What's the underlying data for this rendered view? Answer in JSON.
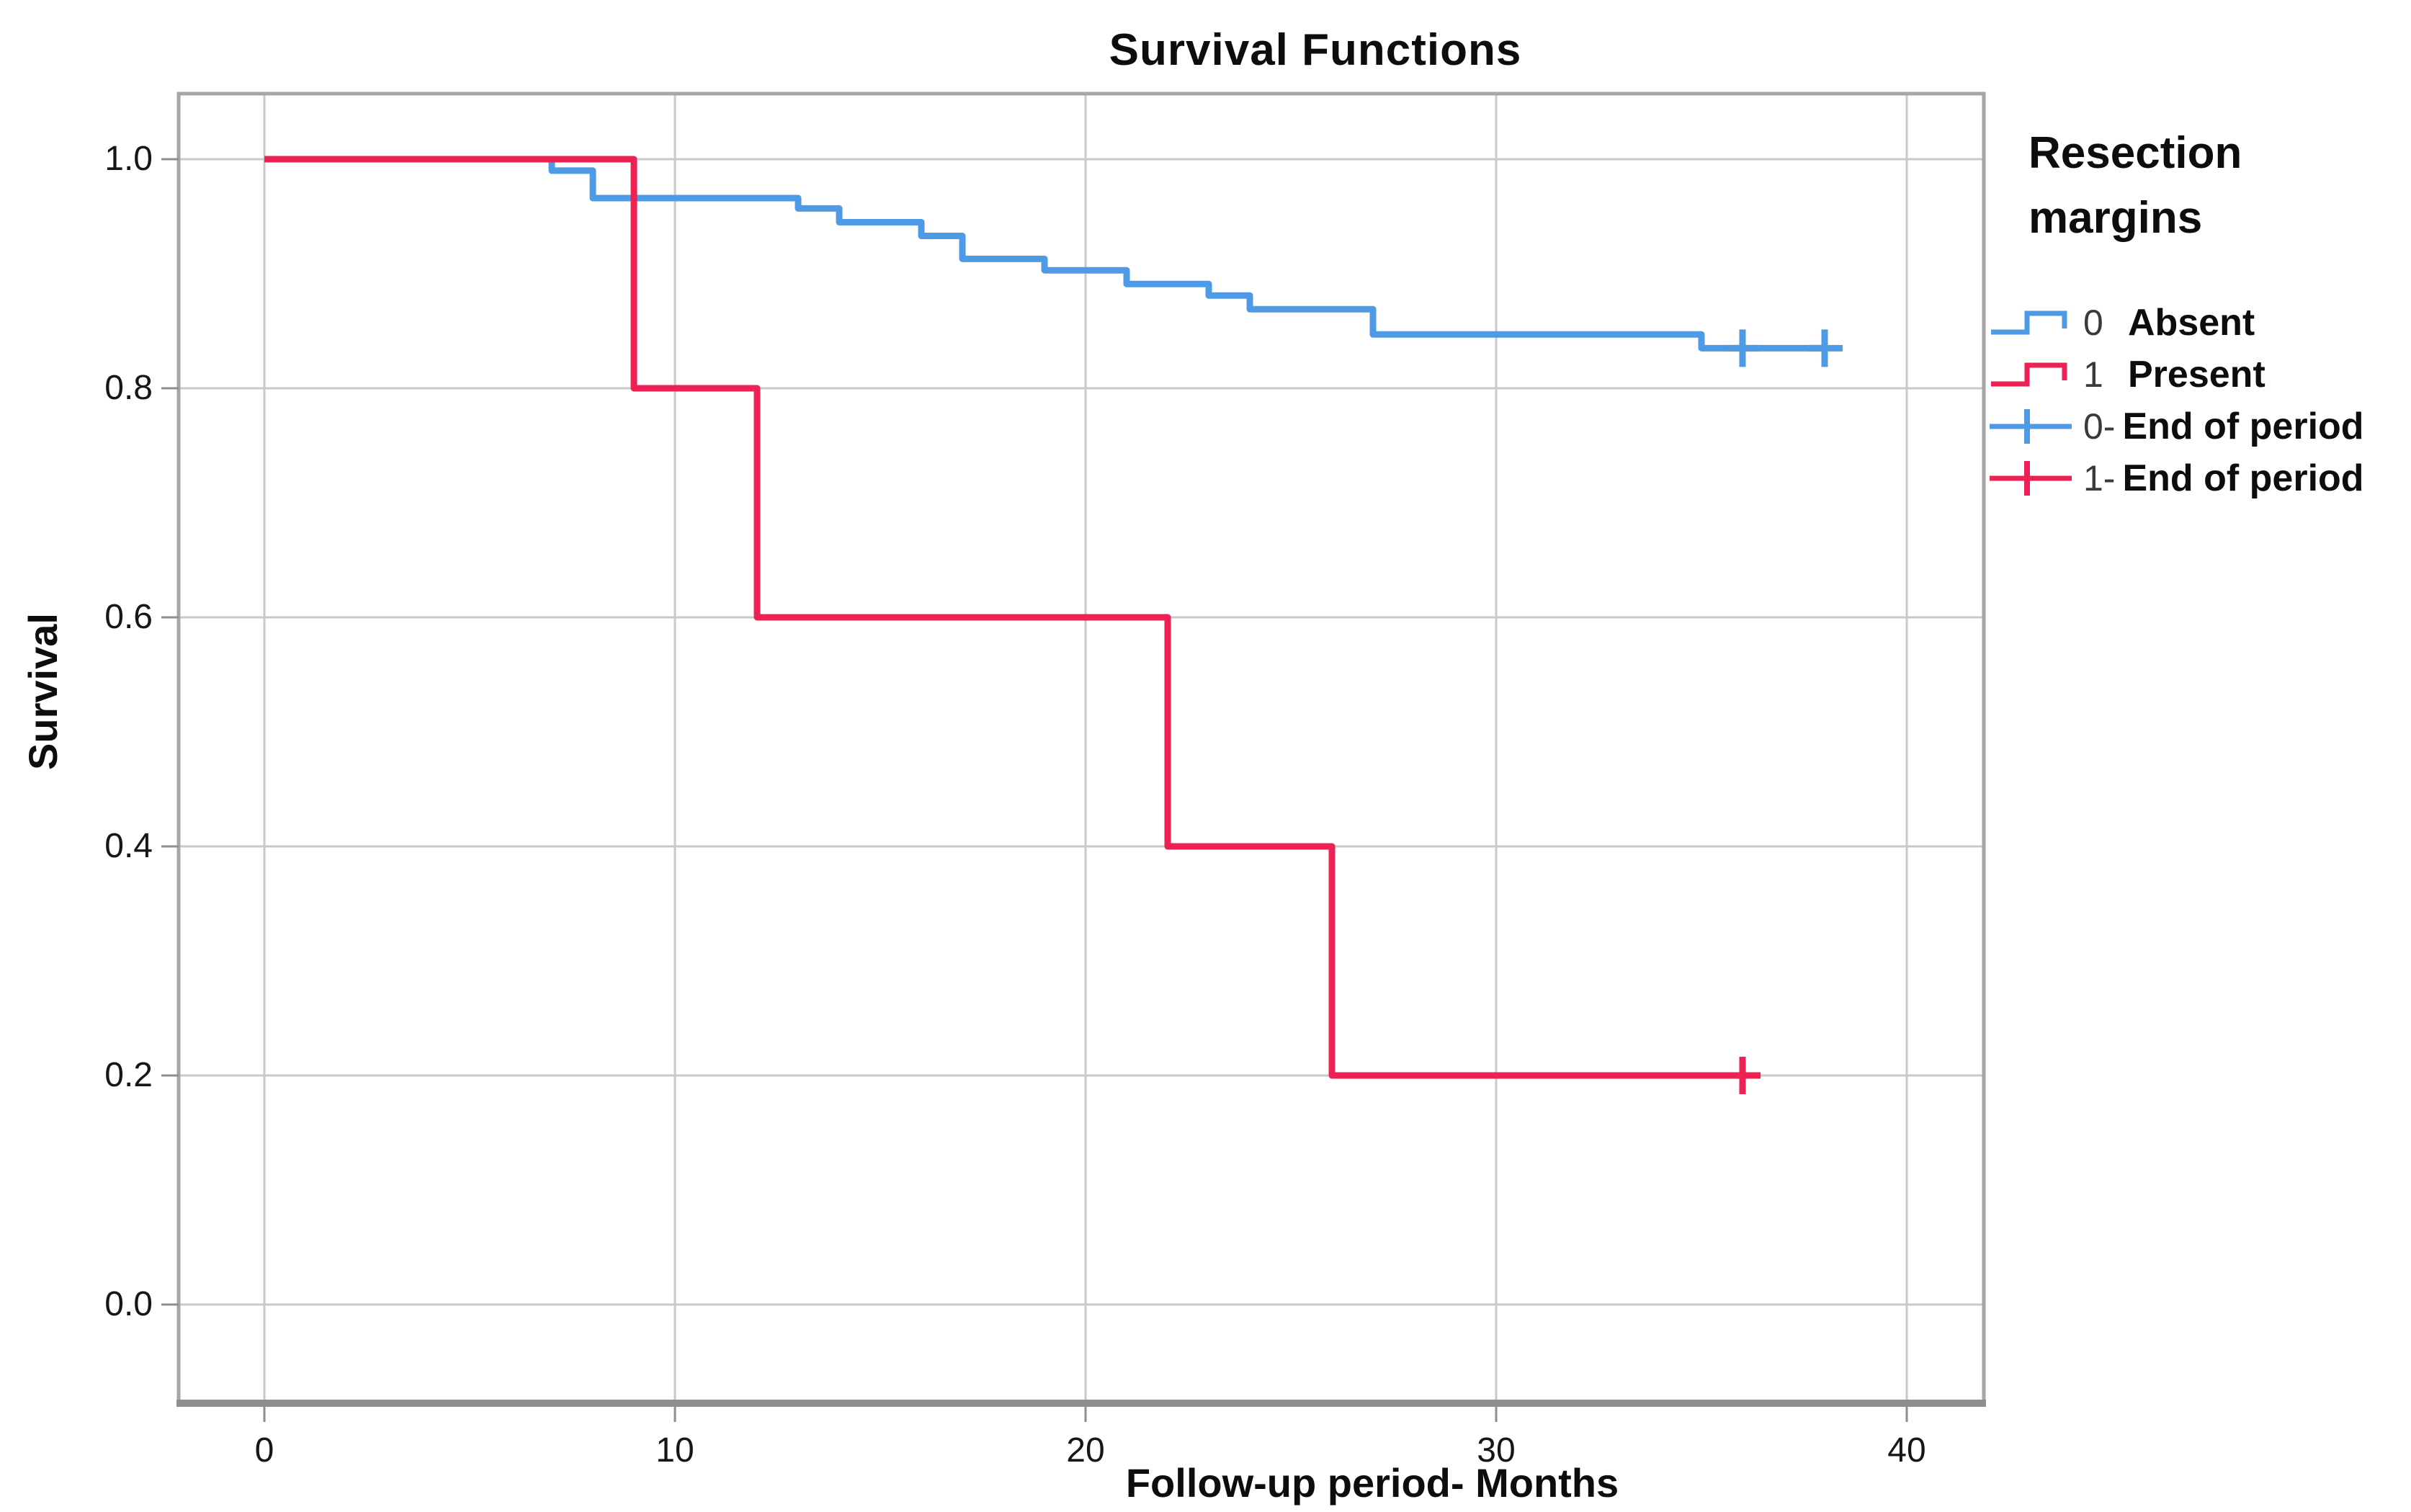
{
  "chart_data": {
    "type": "line",
    "subtype": "kaplan-meier-step",
    "title": "Survival Functions",
    "xlabel": "Follow-up period- Months",
    "ylabel": "Survival",
    "grid": true,
    "xlim": [
      -2,
      43
    ],
    "ylim": [
      -0.09,
      1.06
    ],
    "x_ticks": {
      "values": [
        0,
        10,
        20,
        30,
        40
      ],
      "labels": [
        "0",
        "10",
        "20",
        "30",
        "40"
      ]
    },
    "y_ticks": {
      "values": [
        1.0,
        0.8,
        0.6,
        0.4,
        0.2,
        0.0
      ],
      "labels": [
        "1.0",
        "0.8",
        "0.6",
        "0.4",
        "0.2",
        "0.0"
      ]
    },
    "legend": {
      "position": "right",
      "title_line1": "Resection",
      "title_line2": "margins",
      "entries": [
        {
          "prefix": "0",
          "label": "Absent",
          "color": "#4E9AE4",
          "symbol": "step"
        },
        {
          "prefix": "1",
          "label": "Present",
          "color": "#EE2155",
          "symbol": "step"
        },
        {
          "prefix": "0-",
          "label": "End of period",
          "color": "#4E9AE4",
          "symbol": "censored"
        },
        {
          "prefix": "1-",
          "label": "End of period",
          "color": "#EE2155",
          "symbol": "censored"
        }
      ]
    },
    "series": [
      {
        "name": "Absent",
        "group_code": "0",
        "color": "#4E9AE4",
        "points": [
          [
            0,
            1.0
          ],
          [
            7,
            0.99
          ],
          [
            8,
            0.966
          ],
          [
            13,
            0.957
          ],
          [
            14,
            0.945
          ],
          [
            16,
            0.933
          ],
          [
            17,
            0.913
          ],
          [
            19,
            0.903
          ],
          [
            21,
            0.891
          ],
          [
            23,
            0.881
          ],
          [
            24,
            0.869
          ],
          [
            27,
            0.847
          ],
          [
            35,
            0.835
          ]
        ],
        "line_end_x": 38,
        "censored_points": [
          [
            36,
            0.835
          ],
          [
            38,
            0.835
          ]
        ]
      },
      {
        "name": "Present",
        "group_code": "1",
        "color": "#EE2155",
        "points": [
          [
            0,
            1.0
          ],
          [
            9,
            0.8
          ],
          [
            12,
            0.6
          ],
          [
            22,
            0.4
          ],
          [
            26,
            0.2
          ]
        ],
        "line_end_x": 36,
        "censored_points": [
          [
            36,
            0.2
          ]
        ]
      }
    ],
    "colors": {
      "gridline": "#c9c9c9",
      "frame": "#a6a6a6",
      "axis_baseline": "#8e8e8e",
      "text": "#0d0d0d"
    }
  }
}
